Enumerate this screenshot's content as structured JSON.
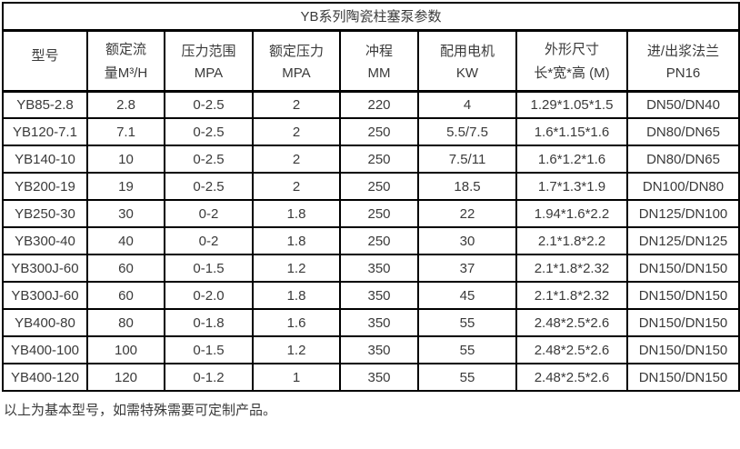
{
  "table": {
    "title": "YB系列陶瓷柱塞泵参数",
    "columns": [
      {
        "line1": "型号",
        "line2": ""
      },
      {
        "line1": "额定流",
        "line2": "量M³/H"
      },
      {
        "line1": "压力范围",
        "line2": "MPA"
      },
      {
        "line1": "额定压力",
        "line2": "MPA"
      },
      {
        "line1": "冲程",
        "line2": "MM"
      },
      {
        "line1": "配用电机",
        "line2": "KW"
      },
      {
        "line1": "外形尺寸",
        "line2": "长*宽*高 (M)"
      },
      {
        "line1": "进/出浆法兰",
        "line2": "PN16"
      }
    ],
    "rows": [
      [
        "YB85-2.8",
        "2.8",
        "0-2.5",
        "2",
        "220",
        "4",
        "1.29*1.05*1.5",
        "DN50/DN40"
      ],
      [
        "YB120-7.1",
        "7.1",
        "0-2.5",
        "2",
        "250",
        "5.5/7.5",
        "1.6*1.15*1.6",
        "DN80/DN65"
      ],
      [
        "YB140-10",
        "10",
        "0-2.5",
        "2",
        "250",
        "7.5/11",
        "1.6*1.2*1.6",
        "DN80/DN65"
      ],
      [
        "YB200-19",
        "19",
        "0-2.5",
        "2",
        "250",
        "18.5",
        "1.7*1.3*1.9",
        "DN100/DN80"
      ],
      [
        "YB250-30",
        "30",
        "0-2",
        "1.8",
        "250",
        "22",
        "1.94*1.6*2.2",
        "DN125/DN100"
      ],
      [
        "YB300-40",
        "40",
        "0-2",
        "1.8",
        "250",
        "30",
        "2.1*1.8*2.2",
        "DN125/DN125"
      ],
      [
        "YB300J-60",
        "60",
        "0-1.5",
        "1.2",
        "350",
        "37",
        "2.1*1.8*2.32",
        "DN150/DN150"
      ],
      [
        "YB300J-60",
        "60",
        "0-2.0",
        "1.8",
        "350",
        "45",
        "2.1*1.8*2.32",
        "DN150/DN150"
      ],
      [
        "YB400-80",
        "80",
        "0-1.8",
        "1.6",
        "350",
        "55",
        "2.48*2.5*2.6",
        "DN150/DN150"
      ],
      [
        "YB400-100",
        "100",
        "0-1.5",
        "1.2",
        "350",
        "55",
        "2.48*2.5*2.6",
        "DN150/DN150"
      ],
      [
        "YB400-120",
        "120",
        "0-1.2",
        "1",
        "350",
        "55",
        "2.48*2.5*2.6",
        "DN150/DN150"
      ]
    ]
  },
  "footnote": "以上为基本型号，如需特殊需要可定制产品。",
  "colors": {
    "border": "#000000",
    "text": "#3a3a3a",
    "background": "#ffffff"
  }
}
